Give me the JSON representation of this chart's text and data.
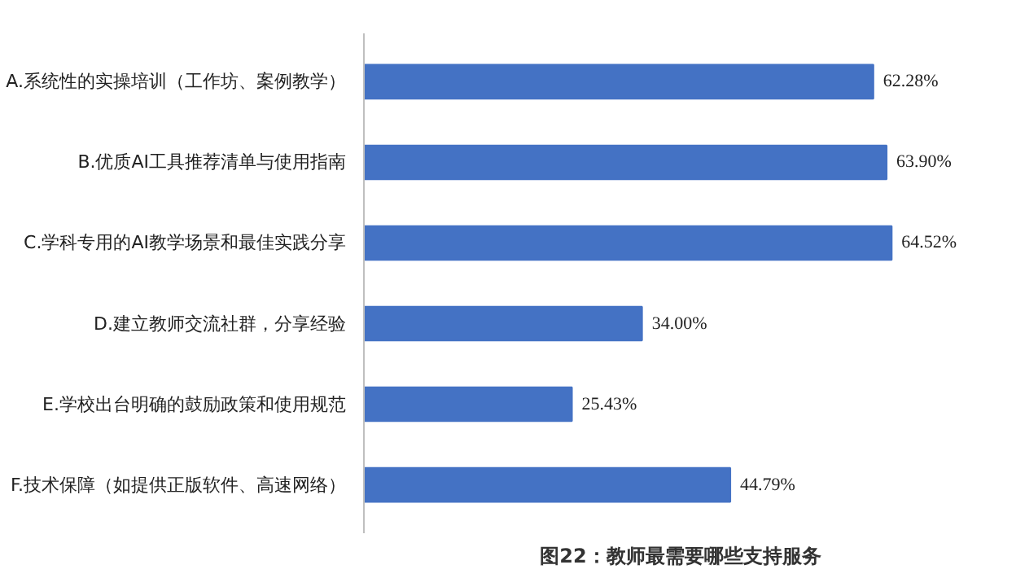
{
  "chart_data": {
    "type": "bar",
    "orientation": "horizontal",
    "title": "图22：教师最需要哪些支持服务",
    "categories": [
      "A.系统性的实操培训（工作坊、案例教学）",
      "B.优质AI工具推荐清单与使用指南",
      "C.学科专用的AI教学场景和最佳实践分享",
      "D.建立教师交流社群，分享经验",
      "E.学校出台明确的鼓励政策和使用规范",
      "F.技术保障（如提供正版软件、高速网络）"
    ],
    "values": [
      62.28,
      63.9,
      64.52,
      34.0,
      25.43,
      44.79
    ],
    "value_labels": [
      "62.28%",
      "63.90%",
      "64.52%",
      "34.00%",
      "25.43%",
      "44.79%"
    ],
    "color": "#4472c4",
    "grid": false,
    "tick_labels": "y"
  }
}
